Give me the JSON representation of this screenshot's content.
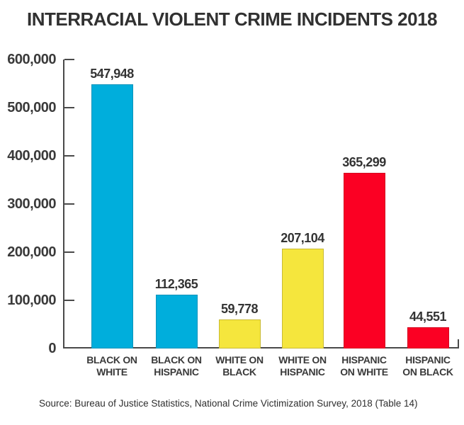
{
  "chart_data": {
    "type": "bar",
    "title": "INTERRACIAL VIOLENT CRIME INCIDENTS 2018",
    "categories": [
      "BLACK ON WHITE",
      "BLACK ON HISPANIC",
      "WHITE ON BLACK",
      "WHITE ON HISPANIC",
      "HISPANIC ON WHITE",
      "HISPANIC ON BLACK"
    ],
    "category_label_lines": [
      [
        "BLACK ON",
        "WHITE"
      ],
      [
        "BLACK ON",
        "HISPANIC"
      ],
      [
        "WHITE ON",
        "BLACK"
      ],
      [
        "WHITE ON",
        "HISPANIC"
      ],
      [
        "HISPANIC",
        "ON WHITE"
      ],
      [
        "HISPANIC",
        "ON BLACK"
      ]
    ],
    "values": [
      547948,
      112365,
      59778,
      207104,
      365299,
      44551
    ],
    "value_labels": [
      "547,948",
      "112,365",
      "59,778",
      "207,104",
      "365,299",
      "44,551"
    ],
    "bar_colors": [
      "#00AEDC",
      "#00AEDC",
      "#F5E63D",
      "#F5E63D",
      "#FB0023",
      "#FB0023"
    ],
    "bar_border_colors": [
      "#0c93ba",
      "#0c93ba",
      "#c8ba34",
      "#c8ba34",
      "#d30620",
      "#d30620"
    ],
    "xlabel": "",
    "ylabel": "",
    "ylim": [
      0,
      600000
    ],
    "y_ticks": [
      0,
      100000,
      200000,
      300000,
      400000,
      500000,
      600000
    ],
    "y_tick_labels": [
      "0",
      "100,000",
      "200,000",
      "300,000",
      "400,000",
      "500,000",
      "600,000"
    ],
    "grid": false,
    "legend": "none",
    "axis_color": "#4a4a4a",
    "text_color": "#3a3a3a",
    "source": "Source: Bureau of Justice Statistics, National Crime Victimization Survey, 2018 (Table 14)"
  }
}
